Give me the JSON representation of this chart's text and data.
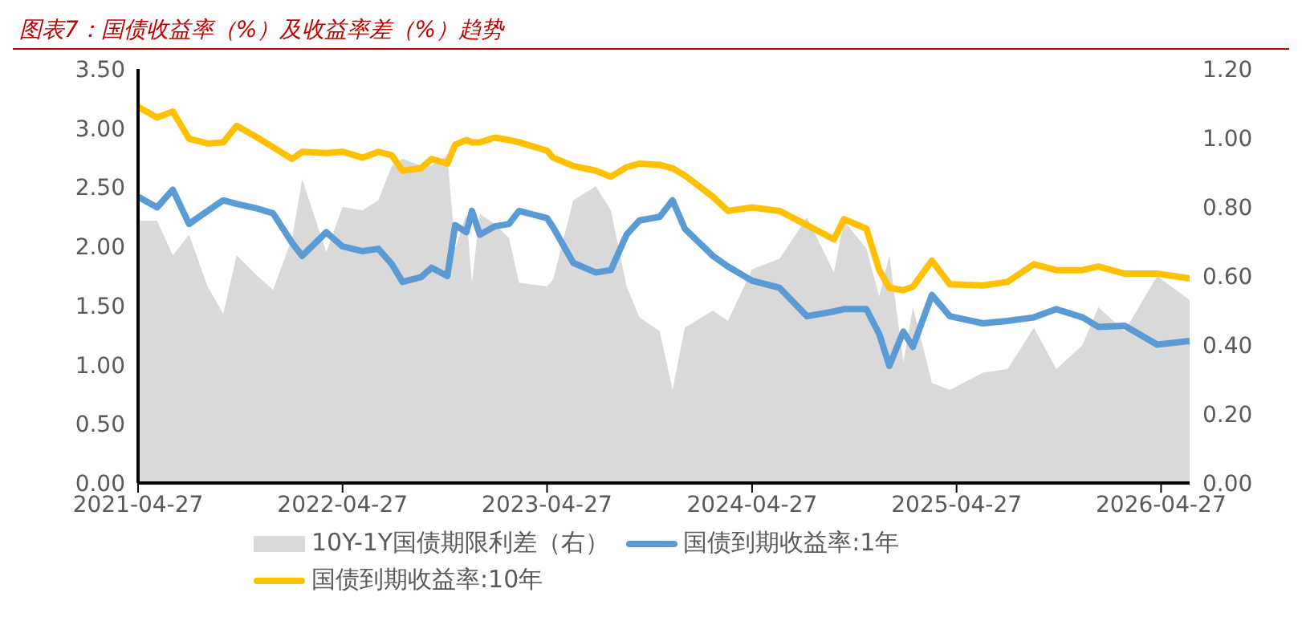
{
  "chart_data": {
    "type": "line",
    "title": "图表7：国债收益率（%）及收益率差（%）趋势",
    "x": [
      "2021-04-27",
      "2021-05-31",
      "2021-06-28",
      "2021-07-27",
      "2021-08-29",
      "2021-09-26",
      "2021-10-20",
      "2021-11-26",
      "2021-12-24",
      "2022-01-27",
      "2022-02-14",
      "2022-03-29",
      "2022-04-27",
      "2022-06-02",
      "2022-06-30",
      "2022-07-24",
      "2022-08-12",
      "2022-09-14",
      "2022-10-03",
      "2022-10-31",
      "2022-11-14",
      "2022-12-04",
      "2022-12-14",
      "2022-12-28",
      "2023-01-24",
      "2023-02-18",
      "2023-03-08",
      "2023-04-27",
      "2023-05-08",
      "2023-06-13",
      "2023-07-23",
      "2023-08-19",
      "2023-09-16",
      "2023-10-09",
      "2023-11-14",
      "2023-12-07",
      "2023-12-29",
      "2024-02-17",
      "2024-03-15",
      "2024-04-27",
      "2024-06-15",
      "2024-08-03",
      "2024-09-20",
      "2024-10-08",
      "2024-11-17",
      "2024-12-10",
      "2024-12-28",
      "2025-01-22",
      "2025-02-08",
      "2025-03-14",
      "2025-04-15",
      "2025-06-13",
      "2025-07-27",
      "2025-09-12",
      "2025-10-22",
      "2025-12-08",
      "2026-01-05",
      "2026-02-21",
      "2026-04-20",
      "2026-06-17"
    ],
    "series": [
      {
        "name": "10Y-1Y国债期限利差（右）",
        "type": "area",
        "axis": "y2",
        "color": "#d9d9d9",
        "values": [
          0.76,
          0.76,
          0.66,
          0.72,
          0.57,
          0.49,
          0.66,
          0.6,
          0.56,
          0.71,
          0.88,
          0.67,
          0.8,
          0.79,
          0.82,
          0.92,
          0.94,
          0.92,
          0.92,
          0.95,
          0.68,
          0.78,
          0.58,
          0.78,
          0.75,
          0.71,
          0.58,
          0.57,
          0.59,
          0.82,
          0.86,
          0.79,
          0.57,
          0.48,
          0.44,
          0.27,
          0.45,
          0.5,
          0.47,
          0.62,
          0.65,
          0.77,
          0.61,
          0.76,
          0.68,
          0.54,
          0.66,
          0.35,
          0.51,
          0.29,
          0.27,
          0.32,
          0.33,
          0.45,
          0.33,
          0.4,
          0.51,
          0.44,
          0.6,
          0.53
        ]
      },
      {
        "name": "国债到期收益率:1年",
        "color": "#5b9bd5",
        "values": [
          2.42,
          2.33,
          2.48,
          2.19,
          2.3,
          2.39,
          2.36,
          2.32,
          2.28,
          2.03,
          1.92,
          2.12,
          2.0,
          1.96,
          1.98,
          1.85,
          1.7,
          1.74,
          1.82,
          1.75,
          2.18,
          2.12,
          2.3,
          2.1,
          2.17,
          2.19,
          2.3,
          2.24,
          2.16,
          1.86,
          1.78,
          1.8,
          2.1,
          2.22,
          2.25,
          2.39,
          2.15,
          1.92,
          1.83,
          1.71,
          1.65,
          1.41,
          1.45,
          1.47,
          1.47,
          1.26,
          0.99,
          1.28,
          1.15,
          1.59,
          1.41,
          1.35,
          1.37,
          1.4,
          1.47,
          1.4,
          1.32,
          1.33,
          1.17,
          1.2
        ]
      },
      {
        "name": "国债到期收益率:10年",
        "color": "#ffc000",
        "values": [
          3.18,
          3.09,
          3.14,
          2.91,
          2.87,
          2.88,
          3.02,
          2.92,
          2.84,
          2.74,
          2.8,
          2.79,
          2.8,
          2.75,
          2.8,
          2.77,
          2.64,
          2.66,
          2.74,
          2.7,
          2.86,
          2.9,
          2.88,
          2.88,
          2.92,
          2.9,
          2.88,
          2.81,
          2.75,
          2.68,
          2.64,
          2.59,
          2.67,
          2.7,
          2.69,
          2.66,
          2.6,
          2.42,
          2.3,
          2.33,
          2.3,
          2.18,
          2.06,
          2.23,
          2.15,
          1.8,
          1.65,
          1.63,
          1.66,
          1.88,
          1.68,
          1.67,
          1.7,
          1.85,
          1.8,
          1.8,
          1.83,
          1.77,
          1.77,
          1.73
        ]
      }
    ],
    "xlim": [
      "2021-04-27",
      "2026-06-17"
    ],
    "xticks": [
      "2021-04-27",
      "2022-04-27",
      "2023-04-27",
      "2024-04-27",
      "2025-04-27",
      "2026-04-27"
    ],
    "ylim": [
      0,
      3.5
    ],
    "yticks": [
      {
        "value": 0,
        "label": "0.00"
      },
      {
        "value": 0.5,
        "label": "0.50"
      },
      {
        "value": 1,
        "label": "1.00"
      },
      {
        "value": 1.5,
        "label": "1.50"
      },
      {
        "value": 2,
        "label": "2.00"
      },
      {
        "value": 2.5,
        "label": "2.50"
      },
      {
        "value": 3,
        "label": "3.00"
      },
      {
        "value": 3.5,
        "label": "3.50"
      }
    ],
    "y2lim": [
      0,
      1.2
    ],
    "y2ticks": [
      {
        "value": 0,
        "label": "0.00"
      },
      {
        "value": 0.2,
        "label": "0.20"
      },
      {
        "value": 0.4,
        "label": "0.40"
      },
      {
        "value": 0.6,
        "label": "0.60"
      },
      {
        "value": 0.8,
        "label": "0.80"
      },
      {
        "value": 1,
        "label": "1.00"
      },
      {
        "value": 1.2,
        "label": "1.20"
      }
    ],
    "grid": false,
    "legend": "bottom",
    "marker": "none",
    "line_style": "solid"
  }
}
